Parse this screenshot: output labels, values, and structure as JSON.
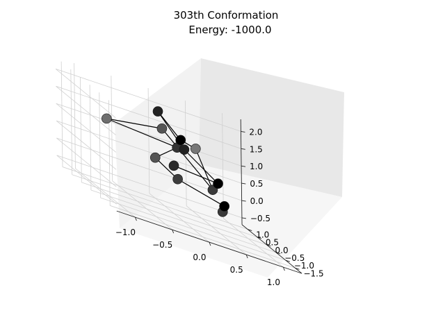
{
  "chart_data": {
    "type": "scatter3d",
    "title_line1": "303th Conformation",
    "title_line2": "Energy: -1000.0",
    "xlabel": "",
    "ylabel": "",
    "zlabel": "",
    "grid": true,
    "x_ticks": [
      "−1.0",
      "−0.5",
      "0.0",
      "0.5",
      "1.0"
    ],
    "y_ticks": [
      "−1.5",
      "−1.0",
      "−0.5",
      "0.0",
      "0.5",
      "1.0"
    ],
    "z_ticks": [
      "−0.5",
      "0.0",
      "0.5",
      "1.0",
      "1.5",
      "2.0"
    ],
    "bead_color": "#000000",
    "bond_color": "#000000",
    "points": [
      {
        "x": 0.2,
        "y": -1.8,
        "z": 0.3,
        "shade": "#3a3a3a"
      },
      {
        "x": 0.3,
        "y": -1.5,
        "z": 0.4,
        "shade": "#000000"
      },
      {
        "x": -0.2,
        "y": -1.0,
        "z": 0.6,
        "shade": "#3d3d3d"
      },
      {
        "x": -0.4,
        "y": -0.6,
        "z": 0.9,
        "shade": "#555555"
      },
      {
        "x": 0.0,
        "y": -0.2,
        "z": 1.3,
        "shade": "#333333"
      },
      {
        "x": -0.9,
        "y": 0.0,
        "z": 1.4,
        "shade": "#6e6e6e"
      },
      {
        "x": -0.1,
        "y": 0.2,
        "z": 1.6,
        "shade": "#555555"
      },
      {
        "x": 0.4,
        "y": -0.5,
        "z": 0.5,
        "shade": "#3a3a3a"
      },
      {
        "x": 0.2,
        "y": -0.4,
        "z": 1.5,
        "shade": "#777777"
      },
      {
        "x": 0.1,
        "y": 0.0,
        "z": 1.5,
        "shade": "#000000"
      },
      {
        "x": 0.0,
        "y": 0.8,
        "z": 1.9,
        "shade": "#222222"
      },
      {
        "x": 0.3,
        "y": 0.6,
        "z": 1.1,
        "shade": "#222222"
      },
      {
        "x": 0.6,
        "y": 0.0,
        "z": 0.6,
        "shade": "#000000"
      },
      {
        "x": -0.2,
        "y": -0.8,
        "z": 0.9,
        "shade": "#2a2a2a"
      }
    ]
  }
}
